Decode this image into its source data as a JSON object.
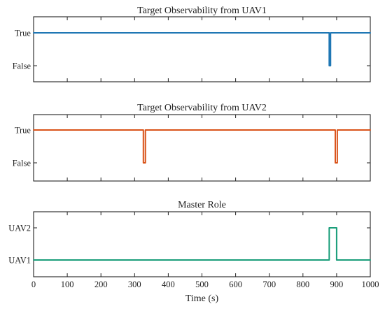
{
  "chart_data": [
    {
      "type": "line",
      "title": "Target Observability from UAV1",
      "ylabels": [
        "True",
        "False"
      ],
      "color": "#1f77b4",
      "xlim": [
        0,
        1000
      ],
      "series": [
        {
          "x": [
            0,
            878,
            878,
            882,
            882,
            1000
          ],
          "y": [
            1,
            1,
            0,
            0,
            1,
            1
          ]
        }
      ]
    },
    {
      "type": "line",
      "title": "Target Observability from UAV2",
      "ylabels": [
        "True",
        "False"
      ],
      "color": "#d95319",
      "xlim": [
        0,
        1000
      ],
      "series": [
        {
          "x": [
            0,
            326,
            326,
            332,
            332,
            896,
            896,
            902,
            902,
            1000
          ],
          "y": [
            1,
            1,
            0,
            0,
            1,
            1,
            0,
            0,
            1,
            1
          ]
        }
      ]
    },
    {
      "type": "line",
      "title": "Master Role",
      "ylabels": [
        "UAV2",
        "UAV1"
      ],
      "color": "#1a9e7a",
      "xlim": [
        0,
        1000
      ],
      "xticks": [
        0,
        100,
        200,
        300,
        400,
        500,
        600,
        700,
        800,
        900,
        1000
      ],
      "xlabel": "Time (s)",
      "series": [
        {
          "x": [
            0,
            878,
            878,
            900,
            900,
            1000
          ],
          "y": [
            0,
            0,
            1,
            1,
            0,
            0
          ]
        }
      ]
    }
  ]
}
